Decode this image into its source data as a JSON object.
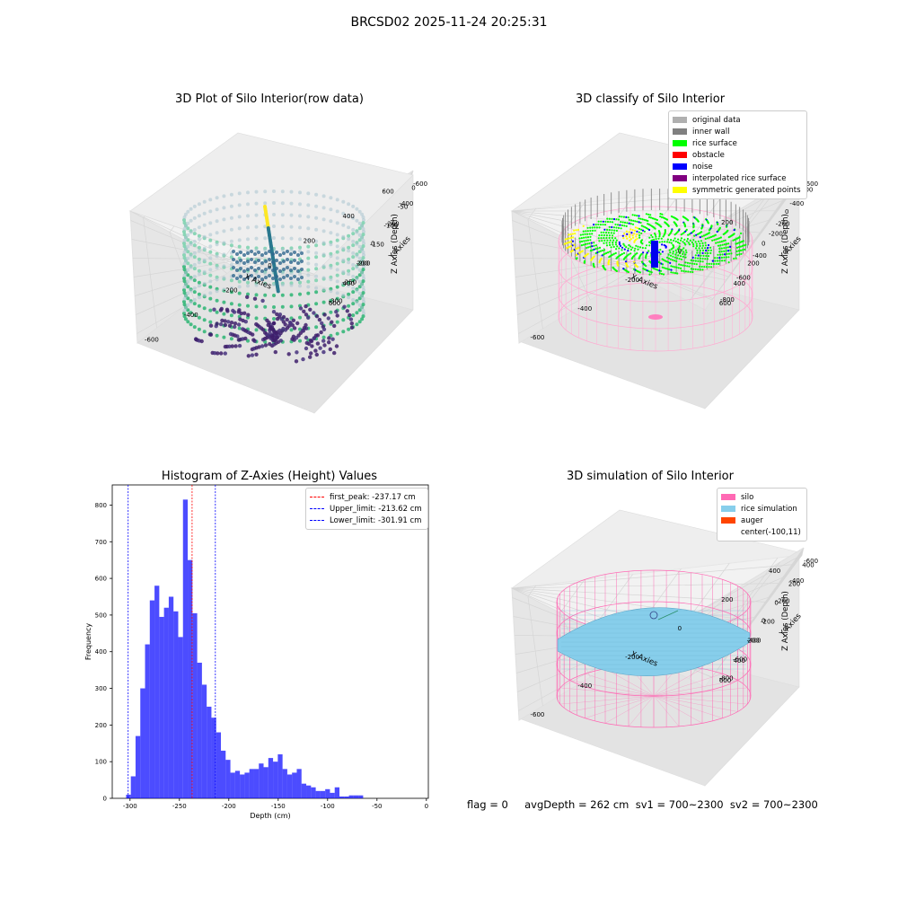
{
  "suptitle": "BRCSD02 2025-11-24 20:25:31",
  "panel1": {
    "title": "3D Plot of Silo Interior(row data)",
    "xlabel": "X Axies",
    "ylabel": "Y Axies",
    "zlabel": "Z Axies (Depth)",
    "xticks": [
      "-600",
      "-400",
      "-200",
      "0",
      "200",
      "400",
      "600"
    ],
    "yticks": [
      "-600",
      "-400",
      "-200",
      "0",
      "200",
      "400",
      "600"
    ],
    "zticks": [
      "0",
      "-50",
      "-100",
      "-150",
      "-200",
      "-250",
      "-300"
    ]
  },
  "panel2": {
    "title": "3D classify of Silo Interior",
    "xlabel": "X Axies",
    "ylabel": "Y Axies",
    "zlabel": "Z Axies (Depth)",
    "xticks": [
      "-600",
      "-400",
      "-200",
      "0",
      "200",
      "400"
    ],
    "yticks": [
      "-600",
      "-400",
      "-200",
      "0",
      "200",
      "400",
      "600"
    ],
    "zticks": [
      "200",
      "0",
      "-200",
      "-400",
      "-600",
      "-800"
    ],
    "legend": [
      {
        "label": "original data",
        "color": "#b0b0b0"
      },
      {
        "label": "inner wall",
        "color": "#808080"
      },
      {
        "label": "rice surface",
        "color": "#00ff00"
      },
      {
        "label": "obstacle",
        "color": "#ff0000"
      },
      {
        "label": "noise",
        "color": "#0000ff"
      },
      {
        "label": "interpolated rice surface",
        "color": "#800080"
      },
      {
        "label": "symmetric generated points",
        "color": "#ffff00"
      }
    ]
  },
  "panel3": {
    "title": "Histogram of Z-Axies (Height) Values",
    "xlabel": "Depth (cm)",
    "ylabel": "Frequency",
    "xticks": [
      "-300",
      "-250",
      "-200",
      "-150",
      "-100",
      "-50",
      "0"
    ],
    "yticks": [
      "0",
      "100",
      "200",
      "300",
      "400",
      "500",
      "600",
      "700",
      "800"
    ],
    "legend": [
      {
        "label": "first_peak: -237.17 cm",
        "color": "#ff0000"
      },
      {
        "label": "Upper_limit: -213.62 cm",
        "color": "#0000ff"
      },
      {
        "label": "Lower_limit: -301.91 cm",
        "color": "#0000ff"
      }
    ]
  },
  "panel4": {
    "title": "3D simulation of Silo Interior",
    "xlabel": "X Axies",
    "ylabel": "Y Axies",
    "zlabel": "Z Axies (Depth)",
    "xticks": [
      "-600",
      "-400",
      "-200",
      "0",
      "200",
      "400"
    ],
    "yticks": [
      "-600",
      "-400",
      "-200",
      "0",
      "200",
      "400",
      "600"
    ],
    "zticks": [
      "400",
      "200",
      "0",
      "-200",
      "-400",
      "-600",
      "-800"
    ],
    "legend": [
      {
        "label": "silo",
        "color": "#ff69b4"
      },
      {
        "label": "rice simulation",
        "color": "#87ceeb"
      },
      {
        "label": "auger",
        "color": "#ff4500"
      },
      {
        "label": "center(-100,11)",
        "color": ""
      }
    ]
  },
  "bottom_text": "flag = 0     avgDepth = 262 cm  sv1 = 700~2300  sv2 = 700~2300",
  "chart_data": [
    {
      "type": "scatter3d",
      "title": "3D Plot of Silo Interior(row data)",
      "xlabel": "X Axies",
      "ylabel": "Y Axies",
      "zlabel": "Z Axies (Depth)",
      "zlim": [
        -320,
        0
      ]
    },
    {
      "type": "scatter3d",
      "title": "3D classify of Silo Interior",
      "xlabel": "X Axies",
      "ylabel": "Y Axies",
      "zlabel": "Z Axies (Depth)",
      "zlim": [
        -900,
        250
      ]
    },
    {
      "type": "bar",
      "title": "Histogram of Z-Axies (Height) Values",
      "xlabel": "Depth (cm)",
      "ylabel": "Frequency",
      "xlim": [
        -318,
        2
      ],
      "ylim": [
        0,
        855
      ],
      "bin_start": -304,
      "bin_width": 4.8,
      "values": [
        10,
        60,
        170,
        300,
        420,
        540,
        580,
        495,
        520,
        550,
        510,
        440,
        815,
        650,
        505,
        370,
        310,
        250,
        220,
        180,
        130,
        105,
        70,
        75,
        65,
        70,
        80,
        80,
        95,
        85,
        110,
        100,
        120,
        80,
        65,
        70,
        80,
        40,
        35,
        30,
        20,
        20,
        25,
        15,
        30,
        5,
        5,
        8,
        8,
        8
      ],
      "annotations": [
        {
          "label": "first_peak: -237.17 cm",
          "x": -237.17,
          "color": "#ff0000"
        },
        {
          "label": "Upper_limit: -213.62 cm",
          "x": -213.62,
          "color": "#0000ff"
        },
        {
          "label": "Lower_limit: -301.91 cm",
          "x": -301.91,
          "color": "#0000ff"
        }
      ]
    },
    {
      "type": "surface3d",
      "title": "3D simulation of Silo Interior",
      "xlabel": "X Axies",
      "ylabel": "Y Axies",
      "zlabel": "Z Axies (Depth)",
      "zlim": [
        -900,
        450
      ]
    }
  ]
}
